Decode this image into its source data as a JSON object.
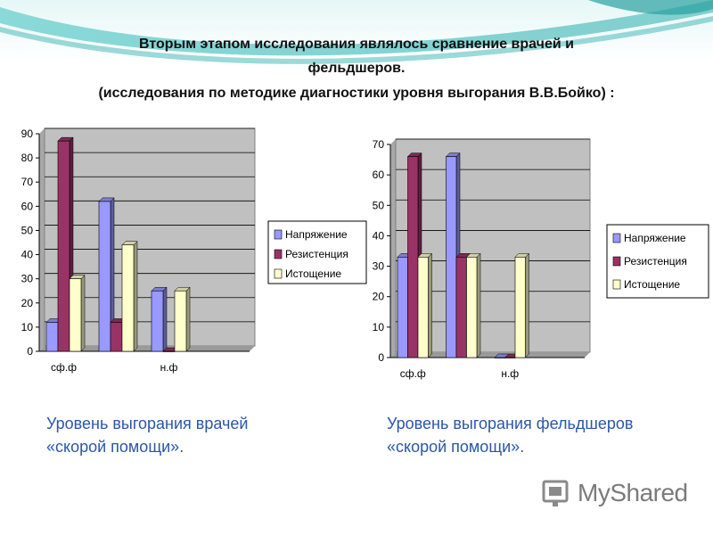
{
  "slide": {
    "title_line1": "Вторым этапом исследования являлось сравнение  врачей и",
    "title_line2": "фельдшеров.",
    "title_line3": "(исследования по методике диагностики уровня выгорания В.В.Бойко) :",
    "caption_left_line1": "Уровень выгорания врачей",
    "caption_left_line2": "«скорой помощи».",
    "caption_right_line1": "Уровень выгорания фельдшеров",
    "caption_right_line2": "«скорой помощи».",
    "watermark": "MyShared"
  },
  "colors": {
    "accent_teal": "#3cb4b4",
    "caption_blue": "#2a56a8",
    "plot_bg": "#c0c0c0",
    "series": [
      "#9999ff",
      "#993366",
      "#ffffcc"
    ]
  },
  "chart_data": [
    {
      "type": "bar",
      "title": "",
      "xlabel": "",
      "ylabel": "",
      "ylim": [
        0,
        90
      ],
      "yticks": [
        0,
        10,
        20,
        30,
        40,
        50,
        60,
        70,
        80,
        90
      ],
      "grid": true,
      "legend": "right",
      "categories": [
        "сф.ф",
        "",
        "н.ф",
        ""
      ],
      "series": [
        {
          "name": "Напряжение",
          "values": [
            12,
            62,
            25,
            null
          ]
        },
        {
          "name": "Резистенция",
          "values": [
            87,
            12,
            0,
            null
          ]
        },
        {
          "name": "Истощение",
          "values": [
            30,
            44,
            25,
            null
          ]
        }
      ]
    },
    {
      "type": "bar",
      "title": "",
      "xlabel": "",
      "ylabel": "",
      "ylim": [
        0,
        70
      ],
      "yticks": [
        0,
        10,
        20,
        30,
        40,
        50,
        60,
        70
      ],
      "grid": true,
      "legend": "right",
      "categories": [
        "сф.ф",
        "",
        "н.ф",
        ""
      ],
      "series": [
        {
          "name": "Напряжение",
          "values": [
            33,
            66,
            0,
            null
          ]
        },
        {
          "name": "Резистенция",
          "values": [
            66,
            33,
            0,
            null
          ]
        },
        {
          "name": "Истощение",
          "values": [
            33,
            33,
            33,
            null
          ]
        }
      ]
    }
  ]
}
